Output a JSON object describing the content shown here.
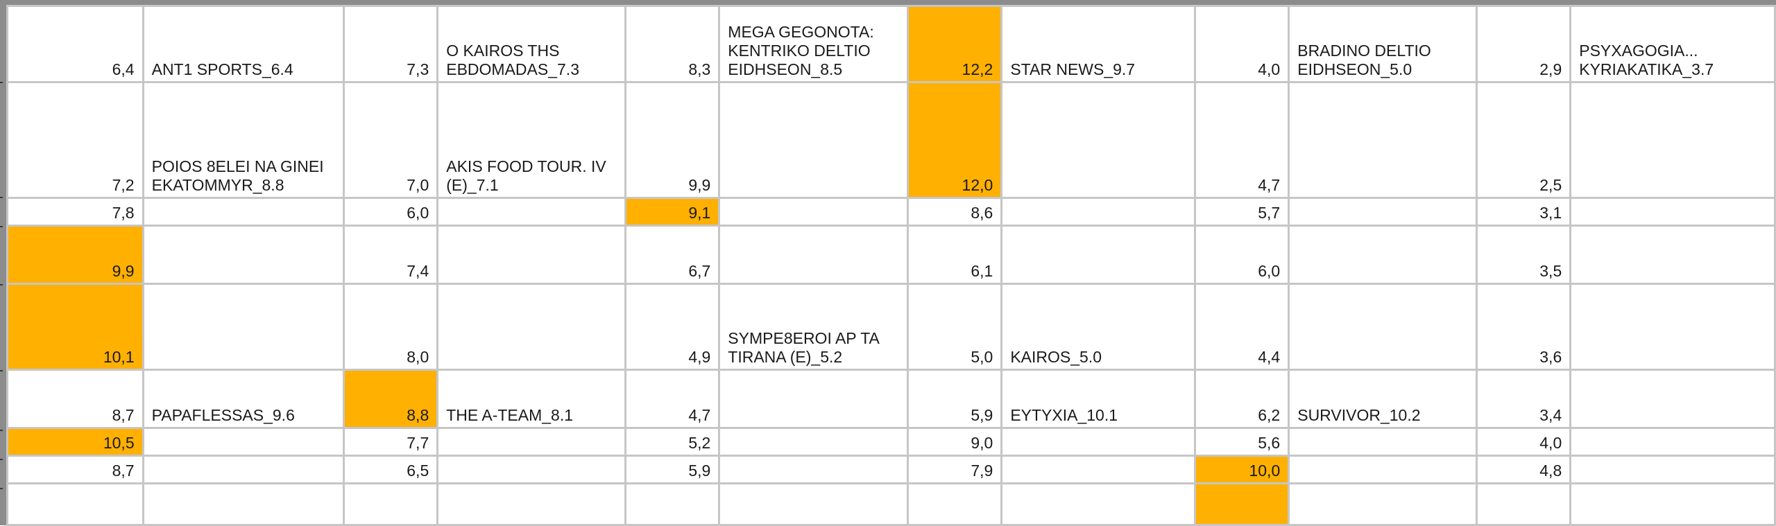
{
  "highlight_color": "#ffb000",
  "rows": [
    {
      "cells": [
        {
          "text": "6,4"
        },
        {
          "text": "ANT1 SPORTS_6.4"
        },
        {
          "text": "7,3"
        },
        {
          "text": "O KAIROS THS EBDOMADAS_7.3"
        },
        {
          "text": "8,3"
        },
        {
          "text": "MEGA GEGONOTA: KENTRIKO DELTIO EIDHSEON_8.5"
        },
        {
          "text": "12,2",
          "highlight": true
        },
        {
          "text": "STAR NEWS_9.7"
        },
        {
          "text": "4,0"
        },
        {
          "text": "BRADINO DELTIO EIDHSEON_5.0"
        },
        {
          "text": "2,9"
        },
        {
          "text": "PSYXAGOGIA... KYRIAKATIKA_3.7"
        }
      ]
    },
    {
      "cells": [
        {
          "text": "7,2"
        },
        {
          "text": "POIOS 8ELEI NA GINEI EKATOMMYR_8.8"
        },
        {
          "text": "7,0"
        },
        {
          "text": "AKIS  FOOD TOUR. IV (E)_7.1"
        },
        {
          "text": "9,9"
        },
        {
          "text": ""
        },
        {
          "text": "12,0",
          "highlight": true
        },
        {
          "text": ""
        },
        {
          "text": "4,7"
        },
        {
          "text": ""
        },
        {
          "text": "2,5"
        },
        {
          "text": ""
        }
      ]
    },
    {
      "cells": [
        {
          "text": "7,8"
        },
        {
          "text": ""
        },
        {
          "text": "6,0"
        },
        {
          "text": ""
        },
        {
          "text": "9,1",
          "highlight": true
        },
        {
          "text": ""
        },
        {
          "text": "8,6"
        },
        {
          "text": ""
        },
        {
          "text": "5,7"
        },
        {
          "text": ""
        },
        {
          "text": "3,1"
        },
        {
          "text": ""
        }
      ]
    },
    {
      "cells": [
        {
          "text": "9,9",
          "highlight": true
        },
        {
          "text": ""
        },
        {
          "text": "7,4"
        },
        {
          "text": ""
        },
        {
          "text": "6,7"
        },
        {
          "text": ""
        },
        {
          "text": "6,1"
        },
        {
          "text": ""
        },
        {
          "text": "6,0"
        },
        {
          "text": ""
        },
        {
          "text": "3,5"
        },
        {
          "text": ""
        }
      ]
    },
    {
      "cells": [
        {
          "text": "10,1",
          "highlight": true
        },
        {
          "text": ""
        },
        {
          "text": "8,0"
        },
        {
          "text": ""
        },
        {
          "text": "4,9"
        },
        {
          "text": "SYMPE8EROI AP  TA TIRANA (E)_5.2"
        },
        {
          "text": "5,0"
        },
        {
          "text": "KAIROS_5.0"
        },
        {
          "text": "4,4"
        },
        {
          "text": ""
        },
        {
          "text": "3,6"
        },
        {
          "text": ""
        }
      ]
    },
    {
      "cells": [
        {
          "text": "8,7"
        },
        {
          "text": "PAPAFLESSAS_9.6"
        },
        {
          "text": "8,8",
          "highlight": true
        },
        {
          "text": "THE A-TEAM_8.1"
        },
        {
          "text": "4,7"
        },
        {
          "text": ""
        },
        {
          "text": "5,9"
        },
        {
          "text": "EYTYXIA_10.1"
        },
        {
          "text": "6,2"
        },
        {
          "text": "SURVIVOR_10.2"
        },
        {
          "text": "3,4"
        },
        {
          "text": ""
        }
      ]
    },
    {
      "cells": [
        {
          "text": "10,5",
          "highlight": true
        },
        {
          "text": ""
        },
        {
          "text": "7,7"
        },
        {
          "text": ""
        },
        {
          "text": "5,2"
        },
        {
          "text": ""
        },
        {
          "text": "9,0"
        },
        {
          "text": ""
        },
        {
          "text": "5,6"
        },
        {
          "text": ""
        },
        {
          "text": "4,0"
        },
        {
          "text": ""
        }
      ]
    },
    {
      "cells": [
        {
          "text": "8,7"
        },
        {
          "text": ""
        },
        {
          "text": "6,5"
        },
        {
          "text": ""
        },
        {
          "text": "5,9"
        },
        {
          "text": ""
        },
        {
          "text": "7,9"
        },
        {
          "text": ""
        },
        {
          "text": "10,0",
          "highlight": true
        },
        {
          "text": ""
        },
        {
          "text": "4,8"
        },
        {
          "text": ""
        }
      ]
    },
    {
      "cells": [
        {
          "text": ""
        },
        {
          "text": ""
        },
        {
          "text": ""
        },
        {
          "text": ""
        },
        {
          "text": ""
        },
        {
          "text": ""
        },
        {
          "text": ""
        },
        {
          "text": ""
        },
        {
          "text": "",
          "highlight": true
        },
        {
          "text": ""
        },
        {
          "text": ""
        },
        {
          "text": ""
        }
      ]
    }
  ]
}
